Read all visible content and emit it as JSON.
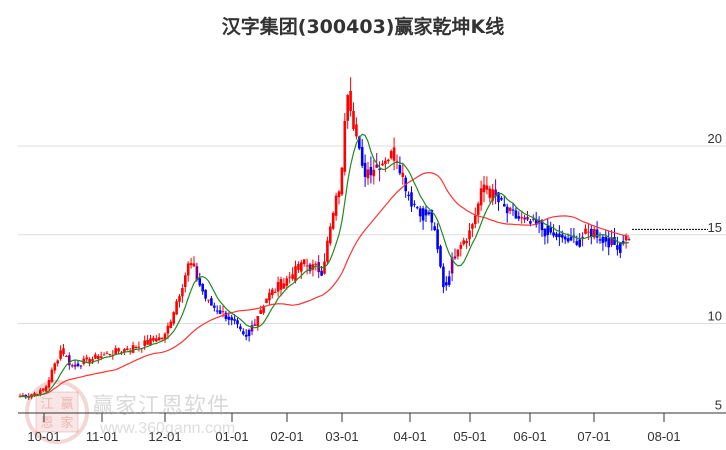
{
  "title": "汉字集团(300403)赢家乾坤K线",
  "watermark": {
    "name": "赢家江恩软件",
    "url": "www.360gann.com",
    "seal_chars": [
      "江",
      "赢",
      "恩",
      "家"
    ]
  },
  "colors": {
    "up": "#ff0000",
    "down": "#0000ff",
    "neutral": "#800080",
    "ma_short": "#228b22",
    "ma_long": "#ff3333",
    "grid": "#dddddd",
    "axis": "#333333"
  },
  "chart_data": {
    "type": "candlestick",
    "title": "汉字集团(300403)赢家乾坤K线",
    "xlabel": "",
    "ylabel": "",
    "ylim": [
      4.8,
      24.5
    ],
    "yticks": [
      5,
      10,
      15,
      20
    ],
    "y_axis_position": "right",
    "grid": "horizontal",
    "xticks": [
      "10-01",
      "11-01",
      "12-01",
      "01-01",
      "02-01",
      "03-01",
      "04-01",
      "05-01",
      "06-01",
      "07-01",
      "08-01"
    ],
    "last_price_line": 15.3,
    "series_description": "Daily K-line with short (green) and long (red) moving averages; colored red (up), blue (down), purple (neutral/transition)",
    "key_points": [
      {
        "date": "09-20",
        "close": 5.9
      },
      {
        "date": "10-01",
        "close": 6.2
      },
      {
        "date": "10-10",
        "close": 8.6
      },
      {
        "date": "10-15",
        "close": 7.6
      },
      {
        "date": "11-01",
        "close": 8.2
      },
      {
        "date": "11-20",
        "close": 8.8
      },
      {
        "date": "12-01",
        "close": 9.3
      },
      {
        "date": "12-12",
        "close": 13.5
      },
      {
        "date": "12-20",
        "close": 11.2
      },
      {
        "date": "01-01",
        "close": 10.2
      },
      {
        "date": "01-08",
        "close": 9.1
      },
      {
        "date": "01-20",
        "close": 11.5
      },
      {
        "date": "02-01",
        "close": 12.5
      },
      {
        "date": "02-10",
        "close": 13.3
      },
      {
        "date": "02-20",
        "close": 13.0
      },
      {
        "date": "03-01",
        "close": 18.5
      },
      {
        "date": "03-03",
        "close": 23.8
      },
      {
        "date": "03-10",
        "close": 18.5
      },
      {
        "date": "03-25",
        "close": 19.6
      },
      {
        "date": "04-01",
        "close": 17.0
      },
      {
        "date": "04-12",
        "close": 15.8
      },
      {
        "date": "04-18",
        "close": 12.0
      },
      {
        "date": "04-25",
        "close": 14.5
      },
      {
        "date": "05-01",
        "close": 15.2
      },
      {
        "date": "05-08",
        "close": 17.8
      },
      {
        "date": "05-20",
        "close": 16.2
      },
      {
        "date": "06-01",
        "close": 15.6
      },
      {
        "date": "06-20",
        "close": 14.6
      },
      {
        "date": "07-01",
        "close": 15.2
      },
      {
        "date": "07-10",
        "close": 14.4
      },
      {
        "date": "07-20",
        "close": 15.3
      }
    ]
  }
}
